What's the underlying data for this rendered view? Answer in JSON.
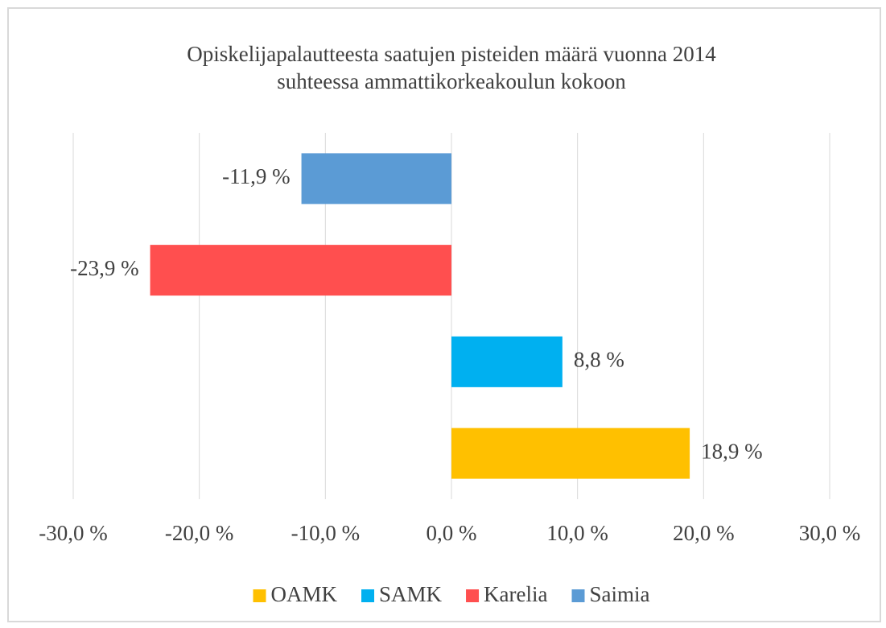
{
  "chart_data": {
    "type": "bar",
    "orientation": "horizontal",
    "title": [
      "Opiskelijapalautteesta saatujen pisteiden määrä vuonna 2014",
      "suhteessa ammattikorkeakoulun kokoon"
    ],
    "categories": [
      null
    ],
    "series": [
      {
        "name": "OAMK",
        "color": "#ffc000",
        "values": [
          18.9
        ],
        "value_labels": [
          "18,9 %"
        ]
      },
      {
        "name": "SAMK",
        "color": "#00b0f0",
        "values": [
          8.8
        ],
        "value_labels": [
          "8,8 %"
        ]
      },
      {
        "name": "Karelia",
        "color": "#ff4f4f",
        "values": [
          -23.9
        ],
        "value_labels": [
          "-23,9 %"
        ]
      },
      {
        "name": "Saimia",
        "color": "#5b9bd5",
        "values": [
          -11.9
        ],
        "value_labels": [
          "-11,9 %"
        ]
      }
    ],
    "xlim": [
      -30,
      30
    ],
    "xticks": [
      {
        "value": -30,
        "label": "-30,0 %"
      },
      {
        "value": -20,
        "label": "-20,0 %"
      },
      {
        "value": -10,
        "label": "-10,0 %"
      },
      {
        "value": 0,
        "label": "0,0 %"
      },
      {
        "value": 10,
        "label": "10,0 %"
      },
      {
        "value": 20,
        "label": "20,0 %"
      },
      {
        "value": 30,
        "label": "30,0 %"
      }
    ],
    "grid": true,
    "legend": "bottom"
  }
}
